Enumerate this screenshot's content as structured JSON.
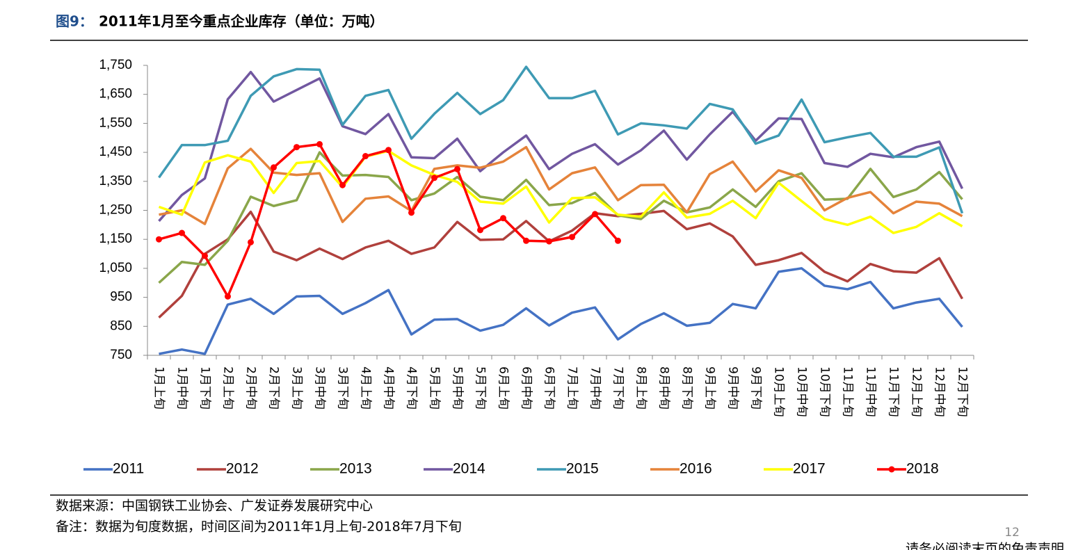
{
  "chart_data": {
    "type": "line",
    "figure_label": "图9：",
    "title": "2011年1月至今重点企业库存（单位：万吨）",
    "categories": [
      "1月上旬",
      "1月中旬",
      "1月下旬",
      "2月上旬",
      "2月中旬",
      "2月下旬",
      "3月上旬",
      "3月中旬",
      "3月下旬",
      "4月上旬",
      "4月中旬",
      "4月下旬",
      "5月上旬",
      "5月中旬",
      "5月下旬",
      "6月上旬",
      "6月中旬",
      "6月下旬",
      "7月上旬",
      "7月中旬",
      "7月下旬",
      "8月上旬",
      "8月中旬",
      "8月下旬",
      "9月上旬",
      "9月中旬",
      "9月下旬",
      "10月上旬",
      "10月中旬",
      "10月下旬",
      "11月上旬",
      "11月中旬",
      "11月下旬",
      "12月上旬",
      "12月中旬",
      "12月下旬"
    ],
    "series": [
      {
        "name": "2011",
        "color": "#4472c4",
        "values": [
          755,
          770,
          755,
          925,
          945,
          893,
          953,
          955,
          893,
          930,
          975,
          822,
          873,
          875,
          835,
          855,
          912,
          853,
          897,
          915,
          805,
          858,
          895,
          852,
          862,
          927,
          912,
          1038,
          1050,
          990,
          978,
          1003,
          912,
          932,
          945,
          848
        ]
      },
      {
        "name": "2012",
        "color": "#b0403c",
        "values": [
          880,
          955,
          1100,
          1150,
          1245,
          1108,
          1078,
          1118,
          1082,
          1122,
          1145,
          1100,
          1122,
          1210,
          1148,
          1150,
          1213,
          1143,
          1180,
          1240,
          1230,
          1238,
          1248,
          1185,
          1205,
          1160,
          1062,
          1078,
          1103,
          1038,
          1005,
          1065,
          1040,
          1035,
          1085,
          945
        ]
      },
      {
        "name": "2013",
        "color": "#8aa64a",
        "values": [
          1000,
          1072,
          1062,
          1145,
          1297,
          1265,
          1285,
          1450,
          1370,
          1372,
          1365,
          1285,
          1308,
          1365,
          1297,
          1285,
          1355,
          1268,
          1275,
          1310,
          1233,
          1220,
          1283,
          1243,
          1260,
          1322,
          1262,
          1350,
          1378,
          1287,
          1290,
          1393,
          1296,
          1322,
          1382,
          1288
        ]
      },
      {
        "name": "2014",
        "color": "#7157a0",
        "values": [
          1213,
          1303,
          1360,
          1633,
          1727,
          1625,
          1665,
          1705,
          1540,
          1513,
          1582,
          1433,
          1430,
          1497,
          1385,
          1450,
          1508,
          1392,
          1445,
          1478,
          1408,
          1457,
          1525,
          1425,
          1512,
          1590,
          1490,
          1567,
          1565,
          1413,
          1400,
          1445,
          1433,
          1468,
          1487,
          1325
        ]
      },
      {
        "name": "2015",
        "color": "#3e9ab4",
        "values": [
          1363,
          1475,
          1475,
          1490,
          1645,
          1712,
          1737,
          1735,
          1545,
          1645,
          1665,
          1497,
          1583,
          1655,
          1582,
          1630,
          1745,
          1637,
          1637,
          1662,
          1512,
          1550,
          1543,
          1532,
          1617,
          1598,
          1480,
          1508,
          1632,
          1485,
          1502,
          1517,
          1435,
          1435,
          1467,
          1240
        ]
      },
      {
        "name": "2016",
        "color": "#e5833a",
        "values": [
          1235,
          1250,
          1203,
          1395,
          1462,
          1380,
          1372,
          1378,
          1210,
          1290,
          1298,
          1248,
          1393,
          1405,
          1397,
          1418,
          1468,
          1322,
          1378,
          1398,
          1285,
          1337,
          1338,
          1243,
          1375,
          1418,
          1315,
          1388,
          1362,
          1250,
          1293,
          1313,
          1240,
          1280,
          1273,
          1230
        ]
      },
      {
        "name": "2017",
        "color": "#ffff00",
        "values": [
          1262,
          1235,
          1415,
          1440,
          1418,
          1310,
          1413,
          1420,
          1330,
          1435,
          1455,
          1405,
          1372,
          1348,
          1280,
          1273,
          1332,
          1208,
          1292,
          1295,
          1235,
          1228,
          1312,
          1225,
          1238,
          1283,
          1223,
          1345,
          1282,
          1220,
          1200,
          1228,
          1172,
          1193,
          1240,
          1195
        ]
      },
      {
        "name": "2018",
        "color": "#ff0000",
        "markers": true,
        "values": [
          1150,
          1172,
          1093,
          953,
          1140,
          1398,
          1468,
          1478,
          1337,
          1437,
          1458,
          1242,
          1362,
          1392,
          1182,
          1223,
          1145,
          1143,
          1158,
          1237,
          1145,
          null,
          null,
          null,
          null,
          null,
          null,
          null,
          null,
          null,
          null,
          null,
          null,
          null,
          null,
          null
        ]
      }
    ],
    "ylim": [
      750,
      1750
    ],
    "yticks": [
      750,
      850,
      950,
      {
        "value": 1050,
        "label": "1,050"
      },
      {
        "value": 1150,
        "label": "1,150"
      },
      {
        "value": 1250,
        "label": "1,250"
      },
      {
        "value": 1350,
        "label": "1,350"
      },
      {
        "value": 1450,
        "label": "1,450"
      },
      {
        "value": 1550,
        "label": "1,550"
      },
      {
        "value": 1650,
        "label": "1,650"
      },
      {
        "value": 1750,
        "label": "1,750"
      }
    ],
    "grid": false,
    "legend": "bottom"
  },
  "footer": {
    "source": "数据来源：中国钢铁工业协会、广发证券发展研究中心",
    "note": "备注：数据为旬度数据，时间区间为2011年1月上旬-2018年7月下旬",
    "page_number": "12",
    "disclaimer": "请务必阅读末页的免责声明"
  }
}
